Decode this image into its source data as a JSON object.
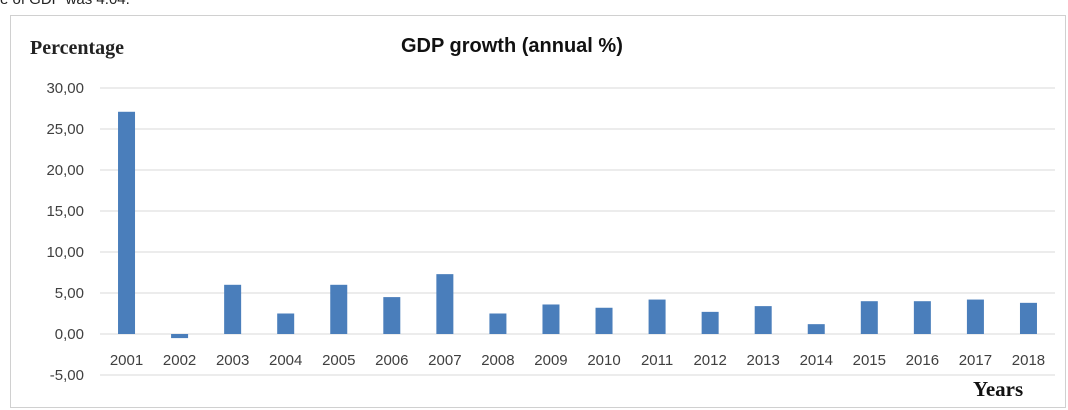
{
  "header_snippet": "e of GDP was 4.04.",
  "chart_data": {
    "type": "bar",
    "title": "GDP growth (annual %)",
    "ylabel": "Percentage",
    "xlabel": "Years",
    "categories": [
      "2001",
      "2002",
      "2003",
      "2004",
      "2005",
      "2006",
      "2007",
      "2008",
      "2009",
      "2010",
      "2011",
      "2012",
      "2013",
      "2014",
      "2015",
      "2016",
      "2017",
      "2018"
    ],
    "values": [
      27.1,
      -0.5,
      6.0,
      2.5,
      6.0,
      4.5,
      7.3,
      2.5,
      3.6,
      3.2,
      4.2,
      2.7,
      3.4,
      1.2,
      4.0,
      4.0,
      4.2,
      3.8
    ],
    "ylim": [
      -5,
      30
    ],
    "yticks": [
      "-5,00",
      "0,00",
      "5,00",
      "10,00",
      "15,00",
      "20,00",
      "25,00",
      "30,00"
    ],
    "grid": true,
    "bar_color": "#4a7ebb",
    "grid_color": "#d9d9d9"
  }
}
